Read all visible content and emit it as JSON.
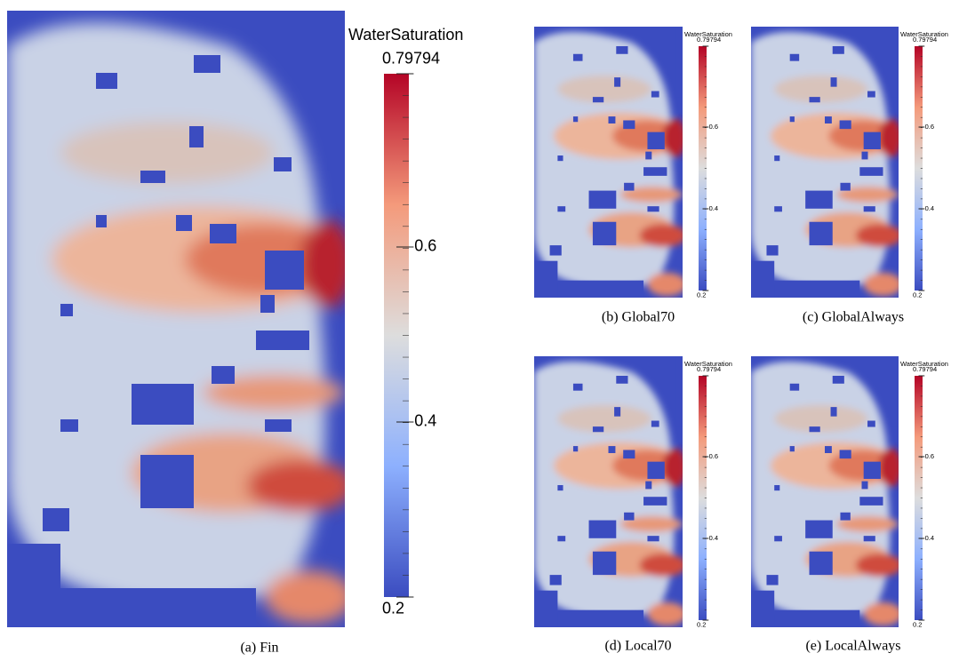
{
  "panels": [
    {
      "caption": "(a) Fin",
      "colorbar": {
        "title": "WaterSaturation",
        "lim": [
          0.2,
          0.79794
        ],
        "ticks": [
          0.2,
          0.4,
          0.6,
          0.79794
        ]
      }
    },
    {
      "caption": "(b) Global70",
      "colorbar": {
        "title": "WaterSaturation",
        "lim": [
          0.2,
          0.79794
        ],
        "ticks": [
          0.2,
          0.4,
          0.6,
          0.79794
        ]
      }
    },
    {
      "caption": "(c) GlobalAlways",
      "colorbar": {
        "title": "WaterSaturation",
        "lim": [
          0.2,
          0.79794
        ],
        "ticks": [
          0.2,
          0.4,
          0.6,
          0.79794
        ]
      }
    },
    {
      "caption": "(d) Local70",
      "colorbar": {
        "title": "WaterSaturation",
        "lim": [
          0.2,
          0.79794
        ],
        "ticks": [
          0.2,
          0.4,
          0.6,
          0.79794
        ]
      }
    },
    {
      "caption": "(e) LocalAlways",
      "colorbar": {
        "title": "WaterSaturation",
        "lim": [
          0.2,
          0.79794
        ],
        "ticks": [
          0.2,
          0.4,
          0.6,
          0.79794
        ]
      }
    }
  ]
}
